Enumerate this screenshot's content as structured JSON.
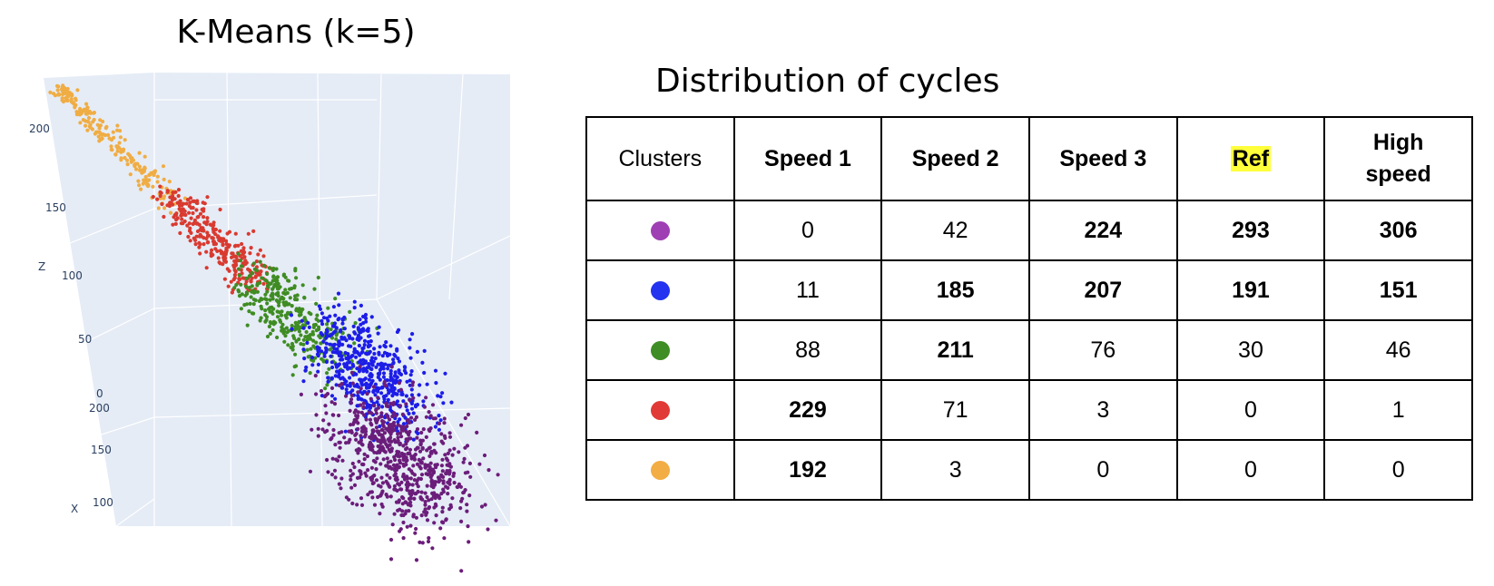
{
  "left_title": "K-Means (k=5)",
  "right_title": "Distribution of cycles",
  "chart_data": {
    "type": "scatter",
    "title": "K-Means (k=5)",
    "axes": {
      "z": {
        "label": "Z",
        "ticks": [
          "0",
          "50",
          "100",
          "150",
          "200"
        ]
      },
      "x": {
        "label": "X",
        "ticks": [
          "100",
          "150",
          "200"
        ]
      }
    },
    "grid": true,
    "background": "#e5ecf6",
    "series": [
      {
        "color": "#f0ad44",
        "count": 220
      },
      {
        "color": "#d93a30",
        "count": 300
      },
      {
        "color": "#3f8c23",
        "count": 340
      },
      {
        "color": "#1d1de8",
        "count": 520
      },
      {
        "color": "#6b1d7a",
        "count": 720
      }
    ]
  },
  "table": {
    "headers": [
      "Clusters",
      "Speed 1",
      "Speed 2",
      "Speed 3",
      "Ref",
      "High speed"
    ],
    "header_lines": [
      [
        "Clusters"
      ],
      [
        "Speed 1"
      ],
      [
        "Speed 2"
      ],
      [
        "Speed 3"
      ],
      [
        "Ref"
      ],
      [
        "High",
        "speed"
      ]
    ],
    "highlight_color": "#ffff3a",
    "rows": [
      {
        "color": "#9e3fb4",
        "values": [
          "0",
          "42",
          "224",
          "293",
          "306"
        ],
        "bold": [
          false,
          false,
          true,
          true,
          true
        ]
      },
      {
        "color": "#2333ef",
        "values": [
          "11",
          "185",
          "207",
          "191",
          "151"
        ],
        "bold": [
          false,
          true,
          true,
          true,
          true
        ]
      },
      {
        "color": "#3f8d25",
        "values": [
          "88",
          "211",
          "76",
          "30",
          "46"
        ],
        "bold": [
          false,
          true,
          false,
          false,
          false
        ]
      },
      {
        "color": "#e13a36",
        "values": [
          "229",
          "71",
          "3",
          "0",
          "1"
        ],
        "bold": [
          true,
          false,
          false,
          false,
          false
        ]
      },
      {
        "color": "#f2ad44",
        "values": [
          "192",
          "3",
          "0",
          "0",
          "0"
        ],
        "bold": [
          true,
          false,
          false,
          false,
          false
        ]
      }
    ]
  }
}
